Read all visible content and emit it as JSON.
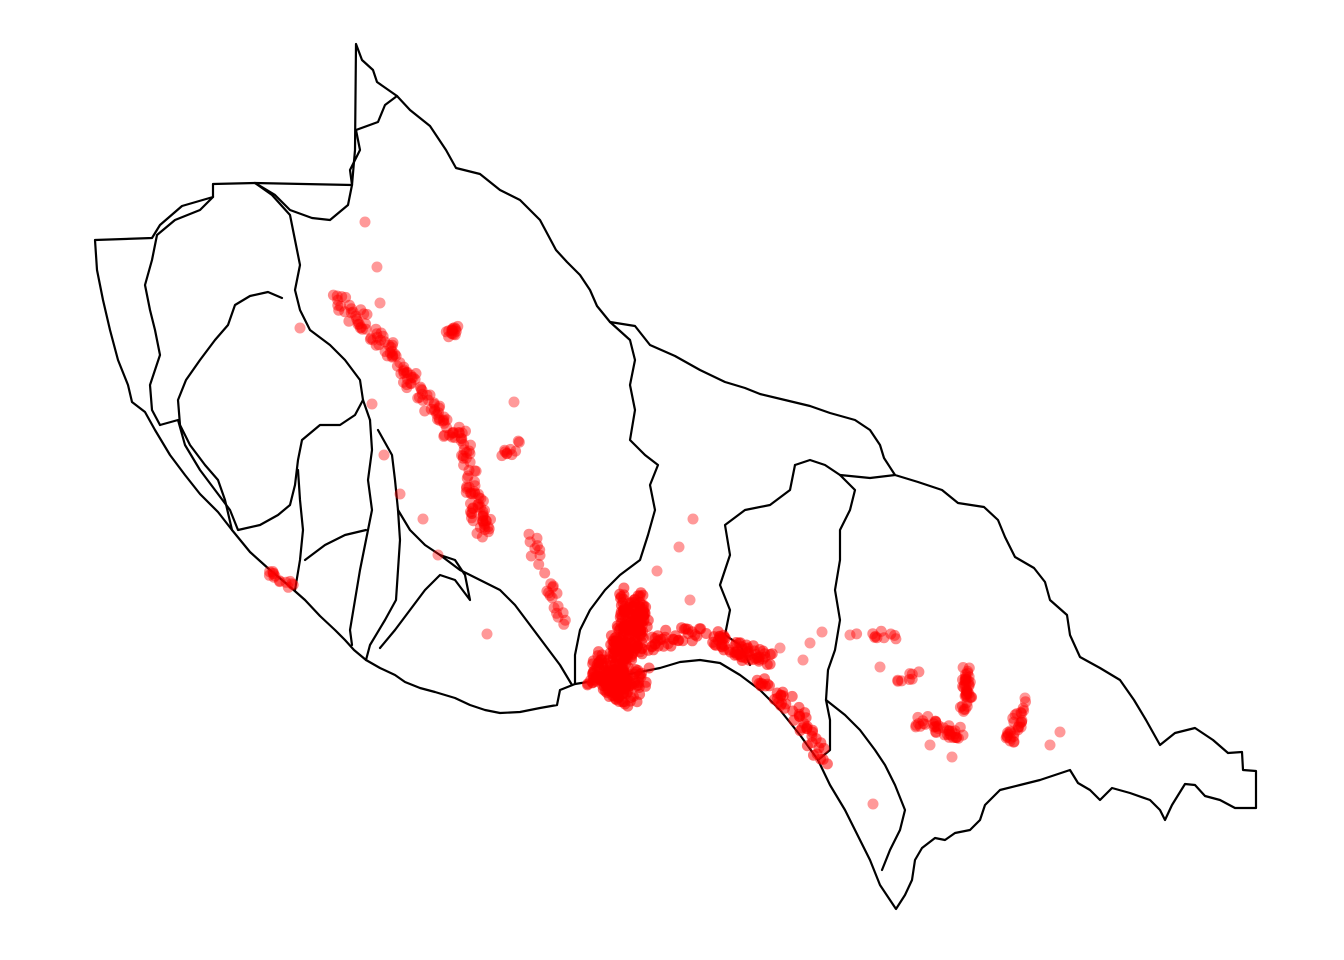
{
  "map": {
    "style": {
      "boundary_color": "#000000",
      "point_color": "#ff0000",
      "background": "#ffffff"
    },
    "clusters": [
      {
        "id": "northwest-ridge",
        "density": "high"
      },
      {
        "id": "central-coast",
        "density": "very-high"
      },
      {
        "id": "southeast-inland",
        "density": "high"
      },
      {
        "id": "west-coast",
        "density": "medium"
      }
    ]
  }
}
